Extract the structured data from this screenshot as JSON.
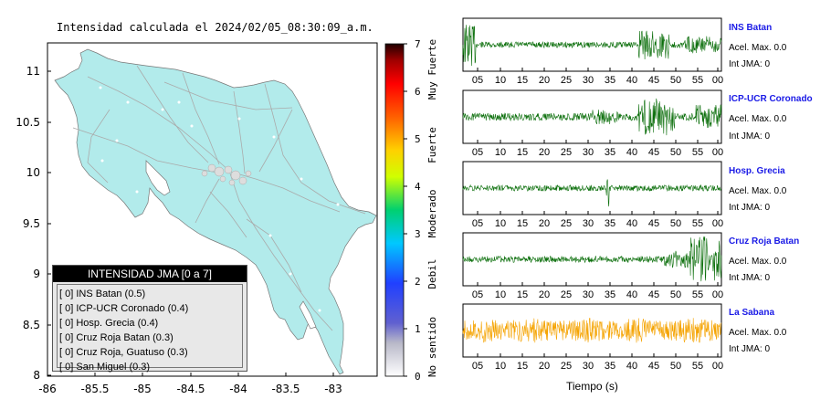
{
  "title": "Intensidad calculada el 2024/02/05_08:30:09_a.m.",
  "map": {
    "lat_ticks": [
      "11",
      "10.5",
      "10",
      "9.5",
      "9",
      "8.5",
      "8"
    ],
    "lon_ticks": [
      "-86",
      "-85.5",
      "-85",
      "-84.5",
      "-84",
      "-83.5",
      "-83"
    ],
    "land_color": "#b2ebeb"
  },
  "legend": {
    "header": "INTENSIDAD JMA [0 a 7]",
    "items": [
      {
        "level": "[ 0]",
        "station": "INS Batan (0.5)"
      },
      {
        "level": "[ 0]",
        "station": "ICP-UCR Coronado (0.4)"
      },
      {
        "level": "[ 0]",
        "station": "Hosp. Grecia (0.4)"
      },
      {
        "level": "[ 0]",
        "station": "Cruz Roja Batan (0.3)"
      },
      {
        "level": "[ 0]",
        "station": "Cruz Roja, Guatuso (0.3)"
      },
      {
        "level": "[ 0]",
        "station": "San Miguel (0.3)"
      }
    ]
  },
  "colorbar": {
    "ticks": [
      "0",
      "1",
      "2",
      "3",
      "4",
      "5",
      "6",
      "7"
    ],
    "labels": [
      "No sentido",
      "Debil",
      "Moderado",
      "Fuerte",
      "Muy Fuerte"
    ]
  },
  "waveforms": {
    "time_ticks": [
      "05",
      "10",
      "15",
      "20",
      "25",
      "30",
      "35",
      "40",
      "45",
      "50",
      "55",
      "00"
    ],
    "xlabel": "Tiempo (s)",
    "stations": [
      {
        "name": "INS Batan",
        "acel": "Acel. Max. 0.0",
        "int": "Int JMA: 0",
        "color": "#0a6e0a"
      },
      {
        "name": "ICP-UCR Coronado",
        "acel": "Acel. Max. 0.0",
        "int": "Int JMA: 0",
        "color": "#0a6e0a"
      },
      {
        "name": "Hosp. Grecia",
        "acel": "Acel. Max. 0.0",
        "int": "Int JMA: 0",
        "color": "#0a6e0a"
      },
      {
        "name": "Cruz Roja Batan",
        "acel": "Acel. Max. 0.0",
        "int": "Int JMA: 0",
        "color": "#0a6e0a"
      },
      {
        "name": "La Sabana",
        "acel": "Acel. Max. 0.0",
        "int": "Int JMA: 0",
        "color": "#f5a300"
      }
    ]
  }
}
